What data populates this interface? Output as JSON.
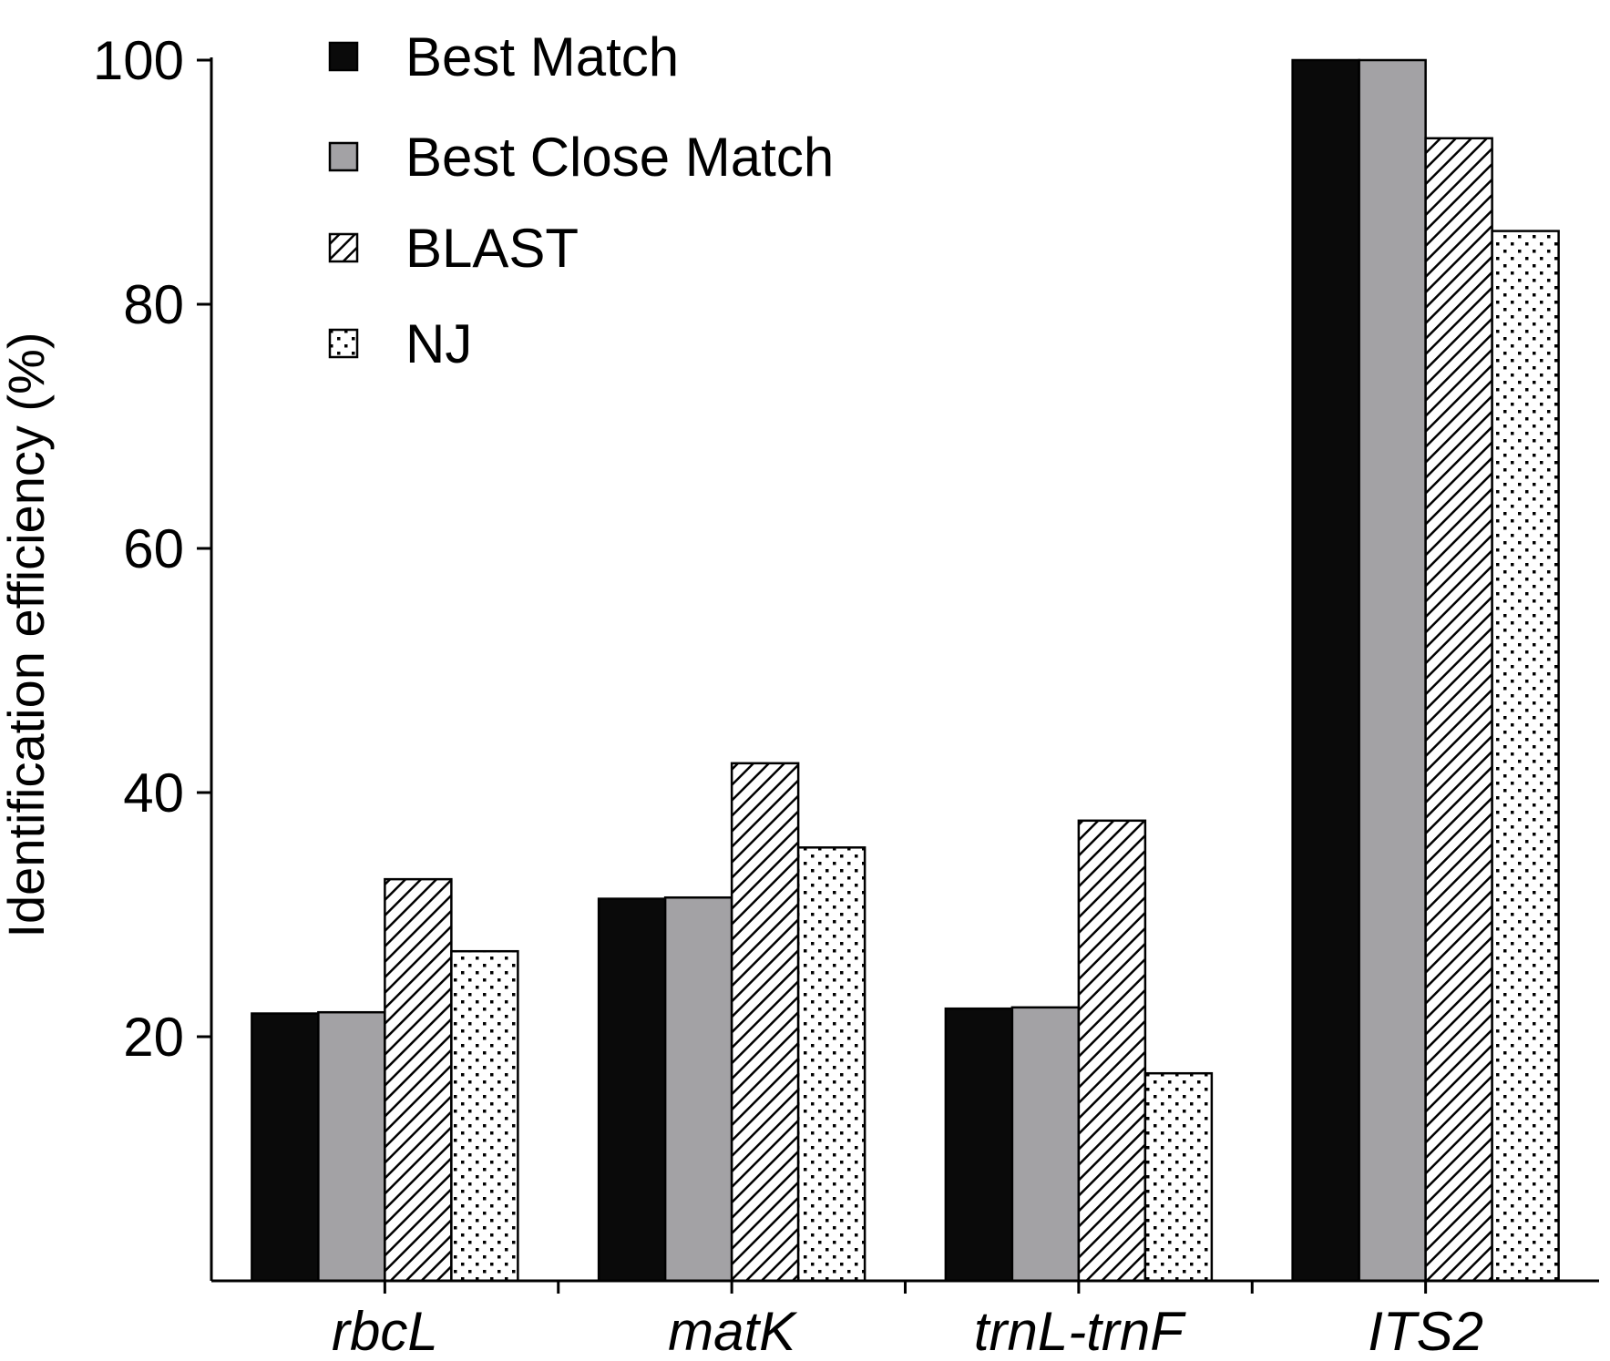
{
  "chart_data": {
    "type": "bar",
    "title": "",
    "xlabel": "",
    "ylabel": "Identification efficiency (%)",
    "ylim": [
      0,
      100
    ],
    "yticks": [
      20,
      40,
      60,
      80,
      100
    ],
    "categories": [
      "rbcL",
      "matK",
      "trnL-trnF",
      "ITS2"
    ],
    "series": [
      {
        "name": "Best Match",
        "values": [
          21.9,
          31.3,
          22.3,
          100
        ],
        "fill": "#0a0a0a",
        "pattern": "solid"
      },
      {
        "name": "Best Close Match",
        "values": [
          22.0,
          31.4,
          22.4,
          100
        ],
        "fill": "#a3a2a5",
        "pattern": "solid"
      },
      {
        "name": "BLAST",
        "values": [
          32.9,
          42.4,
          37.7,
          93.6
        ],
        "fill": "#ffffff",
        "pattern": "hatch"
      },
      {
        "name": "NJ",
        "values": [
          27.0,
          35.5,
          17.0,
          86.0
        ],
        "fill": "#ffffff",
        "pattern": "dots"
      }
    ],
    "grid": false,
    "legend_position": "top-left"
  }
}
